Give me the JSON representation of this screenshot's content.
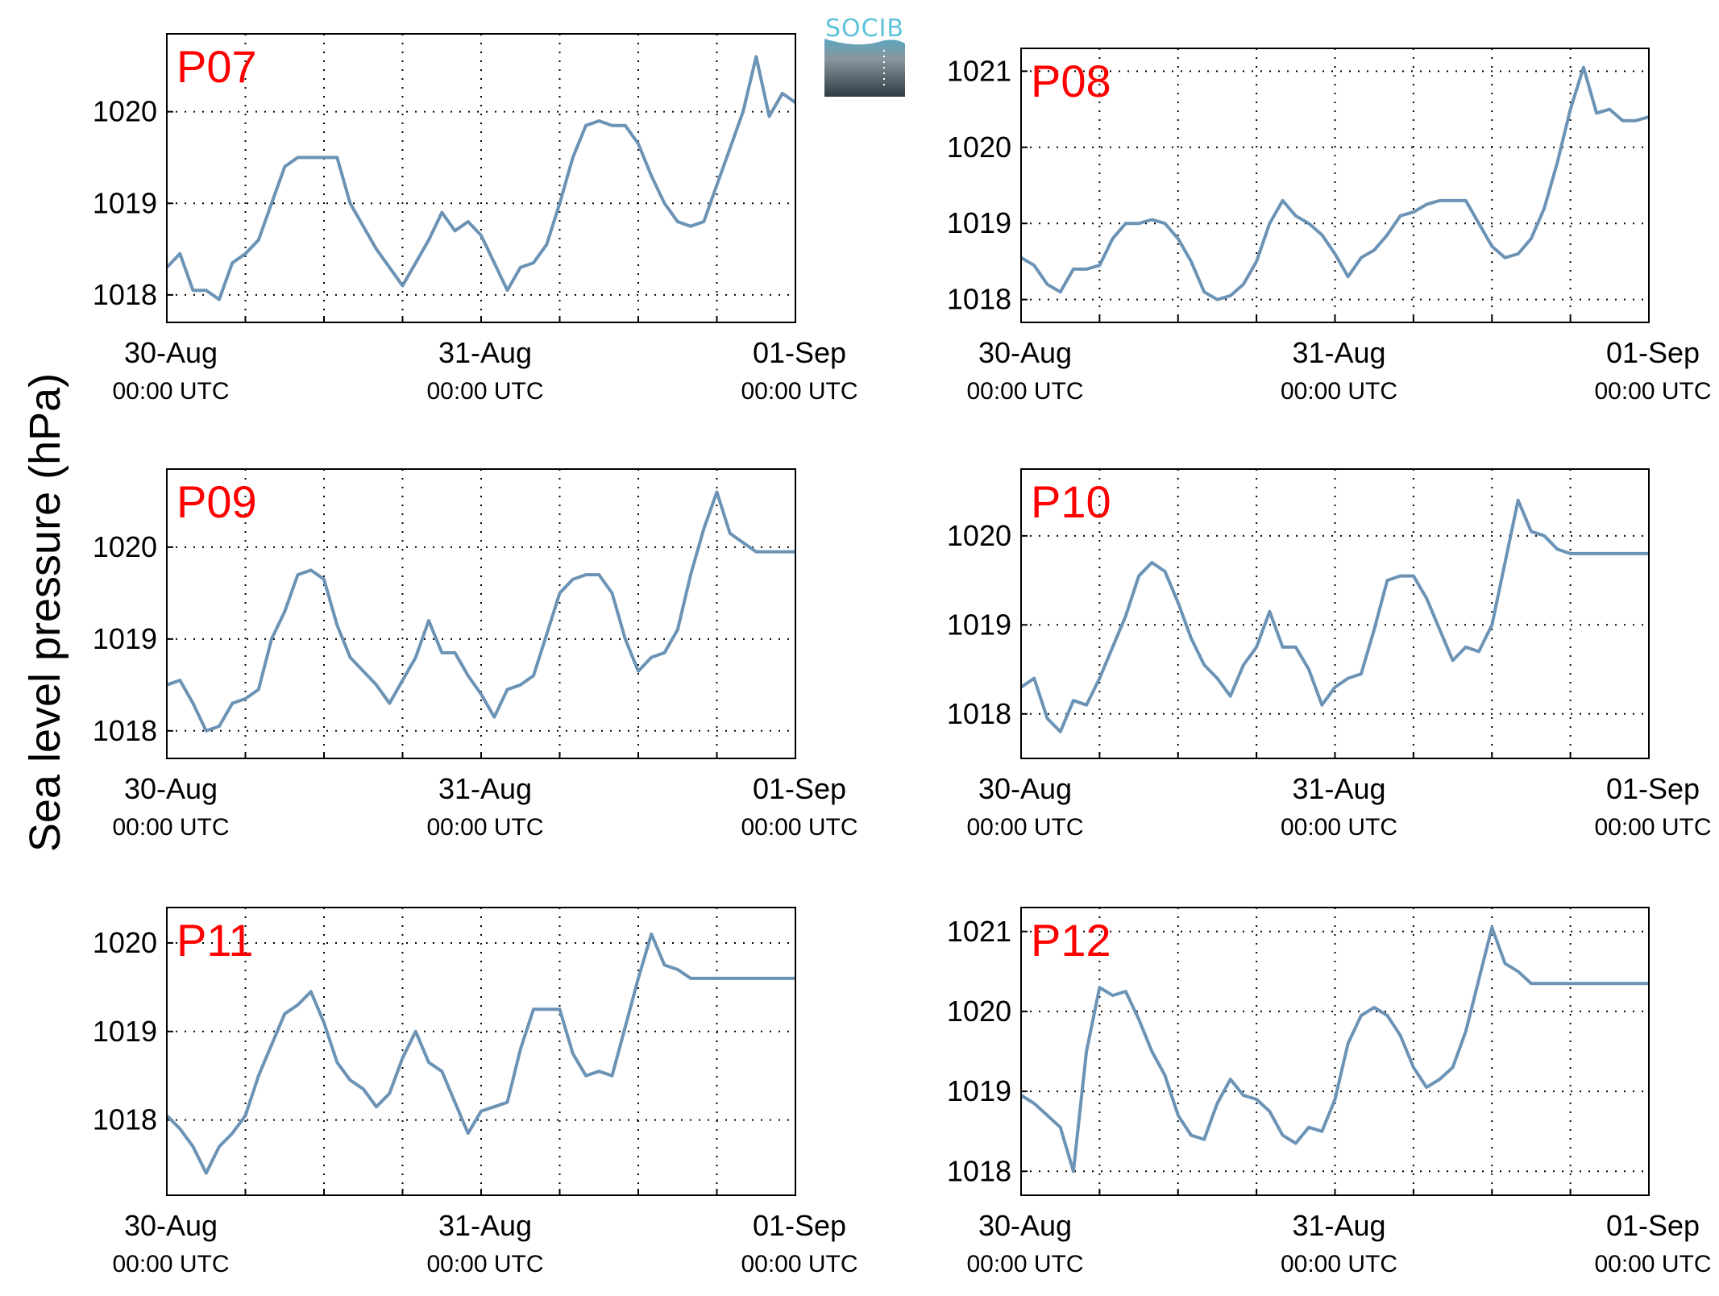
{
  "figure": {
    "ylabel": "Sea level pressure (hPa)",
    "logo_text": "SOCIB",
    "line_color": "#6b93b5",
    "title_color": "#ff0000"
  },
  "chart_data": [
    {
      "type": "line",
      "title": "P07",
      "ylim": [
        1017.7,
        1020.85
      ],
      "yticks": [
        1018,
        1019,
        1020
      ],
      "xlim": [
        "2012-08-30T00:00",
        "2012-09-01T00:00"
      ],
      "xticks": [
        {
          "label": "30-Aug",
          "sub": "00:00 UTC"
        },
        {
          "label": "31-Aug",
          "sub": "00:00 UTC"
        },
        {
          "label": "01-Sep",
          "sub": "00:00 UTC"
        }
      ],
      "grid": true,
      "x": [
        0,
        1,
        2,
        3,
        4,
        5,
        6,
        7,
        8,
        9,
        10,
        11,
        12,
        13,
        14,
        15,
        16,
        17,
        18,
        19,
        20,
        21,
        22,
        23,
        24,
        25,
        26,
        27,
        28,
        29,
        30,
        31,
        32,
        33,
        34,
        35,
        36,
        37,
        38,
        39,
        40,
        41,
        42,
        43,
        44,
        45,
        46,
        47,
        48
      ],
      "values": [
        1018.3,
        1018.45,
        1018.05,
        1018.05,
        1017.95,
        1018.35,
        1018.45,
        1018.6,
        1019.0,
        1019.4,
        1019.5,
        1019.5,
        1019.5,
        1019.5,
        1019.0,
        1018.75,
        1018.5,
        1018.3,
        1018.1,
        1018.35,
        1018.6,
        1018.9,
        1018.7,
        1018.8,
        1018.65,
        1018.35,
        1018.05,
        1018.3,
        1018.35,
        1018.55,
        1019.0,
        1019.5,
        1019.85,
        1019.9,
        1019.85,
        1019.85,
        1019.65,
        1019.3,
        1019.0,
        1018.8,
        1018.75,
        1018.8,
        1019.2,
        1019.6,
        1020.0,
        1020.6,
        1019.95,
        1020.2,
        1020.1
      ]
    },
    {
      "type": "line",
      "title": "P08",
      "ylim": [
        1017.7,
        1021.3
      ],
      "yticks": [
        1018,
        1019,
        1020,
        1021
      ],
      "xlim": [
        "2012-08-30T00:00",
        "2012-09-01T00:00"
      ],
      "xticks": [
        {
          "label": "30-Aug",
          "sub": "00:00 UTC"
        },
        {
          "label": "31-Aug",
          "sub": "00:00 UTC"
        },
        {
          "label": "01-Sep",
          "sub": "00:00 UTC"
        }
      ],
      "grid": true,
      "x": [
        0,
        1,
        2,
        3,
        4,
        5,
        6,
        7,
        8,
        9,
        10,
        11,
        12,
        13,
        14,
        15,
        16,
        17,
        18,
        19,
        20,
        21,
        22,
        23,
        24,
        25,
        26,
        27,
        28,
        29,
        30,
        31,
        32,
        33,
        34,
        35,
        36,
        37,
        38,
        39,
        40,
        41,
        42,
        43,
        44,
        45,
        46,
        47,
        48
      ],
      "values": [
        1018.55,
        1018.45,
        1018.2,
        1018.1,
        1018.4,
        1018.4,
        1018.45,
        1018.8,
        1019.0,
        1019.0,
        1019.05,
        1019.0,
        1018.8,
        1018.5,
        1018.1,
        1018.0,
        1018.05,
        1018.2,
        1018.5,
        1019.0,
        1019.3,
        1019.1,
        1019.0,
        1018.85,
        1018.6,
        1018.3,
        1018.55,
        1018.65,
        1018.85,
        1019.1,
        1019.15,
        1019.25,
        1019.3,
        1019.3,
        1019.3,
        1019.0,
        1018.7,
        1018.55,
        1018.6,
        1018.8,
        1019.2,
        1019.8,
        1020.5,
        1021.05,
        1020.45,
        1020.5,
        1020.35,
        1020.35,
        1020.4
      ]
    },
    {
      "type": "line",
      "title": "P09",
      "ylim": [
        1017.7,
        1020.85
      ],
      "yticks": [
        1018,
        1019,
        1020
      ],
      "xlim": [
        "2012-08-30T00:00",
        "2012-09-01T00:00"
      ],
      "xticks": [
        {
          "label": "30-Aug",
          "sub": "00:00 UTC"
        },
        {
          "label": "31-Aug",
          "sub": "00:00 UTC"
        },
        {
          "label": "01-Sep",
          "sub": "00:00 UTC"
        }
      ],
      "grid": true,
      "x": [
        0,
        1,
        2,
        3,
        4,
        5,
        6,
        7,
        8,
        9,
        10,
        11,
        12,
        13,
        14,
        15,
        16,
        17,
        18,
        19,
        20,
        21,
        22,
        23,
        24,
        25,
        26,
        27,
        28,
        29,
        30,
        31,
        32,
        33,
        34,
        35,
        36,
        37,
        38,
        39,
        40,
        41,
        42,
        43,
        44,
        45,
        46,
        47,
        48
      ],
      "values": [
        1018.5,
        1018.55,
        1018.3,
        1018.0,
        1018.05,
        1018.3,
        1018.35,
        1018.45,
        1019.0,
        1019.3,
        1019.7,
        1019.75,
        1019.65,
        1019.15,
        1018.8,
        1018.65,
        1018.5,
        1018.3,
        1018.55,
        1018.8,
        1019.2,
        1018.85,
        1018.85,
        1018.6,
        1018.4,
        1018.15,
        1018.45,
        1018.5,
        1018.6,
        1019.05,
        1019.5,
        1019.65,
        1019.7,
        1019.7,
        1019.5,
        1019.0,
        1018.65,
        1018.8,
        1018.85,
        1019.1,
        1019.7,
        1020.2,
        1020.6,
        1020.15,
        1020.05,
        1019.95,
        1019.95,
        1019.95,
        1019.95
      ]
    },
    {
      "type": "line",
      "title": "P10",
      "ylim": [
        1017.5,
        1020.75
      ],
      "yticks": [
        1018,
        1019,
        1020
      ],
      "xlim": [
        "2012-08-30T00:00",
        "2012-09-01T00:00"
      ],
      "xticks": [
        {
          "label": "30-Aug",
          "sub": "00:00 UTC"
        },
        {
          "label": "31-Aug",
          "sub": "00:00 UTC"
        },
        {
          "label": "01-Sep",
          "sub": "00:00 UTC"
        }
      ],
      "grid": true,
      "x": [
        0,
        1,
        2,
        3,
        4,
        5,
        6,
        7,
        8,
        9,
        10,
        11,
        12,
        13,
        14,
        15,
        16,
        17,
        18,
        19,
        20,
        21,
        22,
        23,
        24,
        25,
        26,
        27,
        28,
        29,
        30,
        31,
        32,
        33,
        34,
        35,
        36,
        37,
        38,
        39,
        40,
        41,
        42,
        43,
        44,
        45,
        46,
        47,
        48
      ],
      "values": [
        1018.3,
        1018.4,
        1017.95,
        1017.8,
        1018.15,
        1018.1,
        1018.4,
        1018.75,
        1019.1,
        1019.55,
        1019.7,
        1019.6,
        1019.25,
        1018.85,
        1018.55,
        1018.4,
        1018.2,
        1018.55,
        1018.75,
        1019.15,
        1018.75,
        1018.75,
        1018.5,
        1018.1,
        1018.3,
        1018.4,
        1018.45,
        1018.95,
        1019.5,
        1019.55,
        1019.55,
        1019.3,
        1018.95,
        1018.6,
        1018.75,
        1018.7,
        1019.0,
        1019.7,
        1020.4,
        1020.05,
        1020.0,
        1019.85,
        1019.8,
        1019.8,
        1019.8,
        1019.8,
        1019.8,
        1019.8,
        1019.8
      ]
    },
    {
      "type": "line",
      "title": "P11",
      "ylim": [
        1017.15,
        1020.4
      ],
      "yticks": [
        1018,
        1019,
        1020
      ],
      "xlim": [
        "2012-08-30T00:00",
        "2012-09-01T00:00"
      ],
      "xticks": [
        {
          "label": "30-Aug",
          "sub": "00:00 UTC"
        },
        {
          "label": "31-Aug",
          "sub": "00:00 UTC"
        },
        {
          "label": "01-Sep",
          "sub": "00:00 UTC"
        }
      ],
      "grid": true,
      "x": [
        0,
        1,
        2,
        3,
        4,
        5,
        6,
        7,
        8,
        9,
        10,
        11,
        12,
        13,
        14,
        15,
        16,
        17,
        18,
        19,
        20,
        21,
        22,
        23,
        24,
        25,
        26,
        27,
        28,
        29,
        30,
        31,
        32,
        33,
        34,
        35,
        36,
        37,
        38,
        39,
        40,
        41,
        42,
        43,
        44,
        45,
        46,
        47,
        48
      ],
      "values": [
        1018.05,
        1017.9,
        1017.7,
        1017.4,
        1017.7,
        1017.85,
        1018.05,
        1018.5,
        1018.85,
        1019.2,
        1019.3,
        1019.45,
        1019.1,
        1018.65,
        1018.45,
        1018.35,
        1018.15,
        1018.3,
        1018.7,
        1019.0,
        1018.65,
        1018.55,
        1018.2,
        1017.85,
        1018.1,
        1018.15,
        1018.2,
        1018.8,
        1019.25,
        1019.25,
        1019.25,
        1018.75,
        1018.5,
        1018.55,
        1018.5,
        1019.05,
        1019.6,
        1020.1,
        1019.75,
        1019.7,
        1019.6,
        1019.6,
        1019.6,
        1019.6,
        1019.6,
        1019.6,
        1019.6,
        1019.6,
        1019.6
      ]
    },
    {
      "type": "line",
      "title": "P12",
      "ylim": [
        1017.7,
        1021.3
      ],
      "yticks": [
        1018,
        1019,
        1020,
        1021
      ],
      "xlim": [
        "2012-08-30T00:00",
        "2012-09-01T00:00"
      ],
      "xticks": [
        {
          "label": "30-Aug",
          "sub": "00:00 UTC"
        },
        {
          "label": "31-Aug",
          "sub": "00:00 UTC"
        },
        {
          "label": "01-Sep",
          "sub": "00:00 UTC"
        }
      ],
      "grid": true,
      "x": [
        0,
        1,
        2,
        3,
        4,
        5,
        6,
        7,
        8,
        9,
        10,
        11,
        12,
        13,
        14,
        15,
        16,
        17,
        18,
        19,
        20,
        21,
        22,
        23,
        24,
        25,
        26,
        27,
        28,
        29,
        30,
        31,
        32,
        33,
        34,
        35,
        36,
        37,
        38,
        39,
        40,
        41,
        42,
        43,
        44,
        45,
        46,
        47,
        48
      ],
      "values": [
        1018.95,
        1018.85,
        1018.7,
        1018.55,
        1018.0,
        1019.5,
        1020.3,
        1020.2,
        1020.25,
        1019.9,
        1019.5,
        1019.2,
        1018.7,
        1018.45,
        1018.4,
        1018.85,
        1019.15,
        1018.95,
        1018.9,
        1018.75,
        1018.45,
        1018.35,
        1018.55,
        1018.5,
        1018.9,
        1019.6,
        1019.95,
        1020.05,
        1019.95,
        1019.7,
        1019.3,
        1019.05,
        1019.15,
        1019.3,
        1019.75,
        1020.4,
        1021.05,
        1020.6,
        1020.5,
        1020.35,
        1020.35,
        1020.35,
        1020.35,
        1020.35,
        1020.35,
        1020.35,
        1020.35,
        1020.35,
        1020.35
      ]
    }
  ]
}
